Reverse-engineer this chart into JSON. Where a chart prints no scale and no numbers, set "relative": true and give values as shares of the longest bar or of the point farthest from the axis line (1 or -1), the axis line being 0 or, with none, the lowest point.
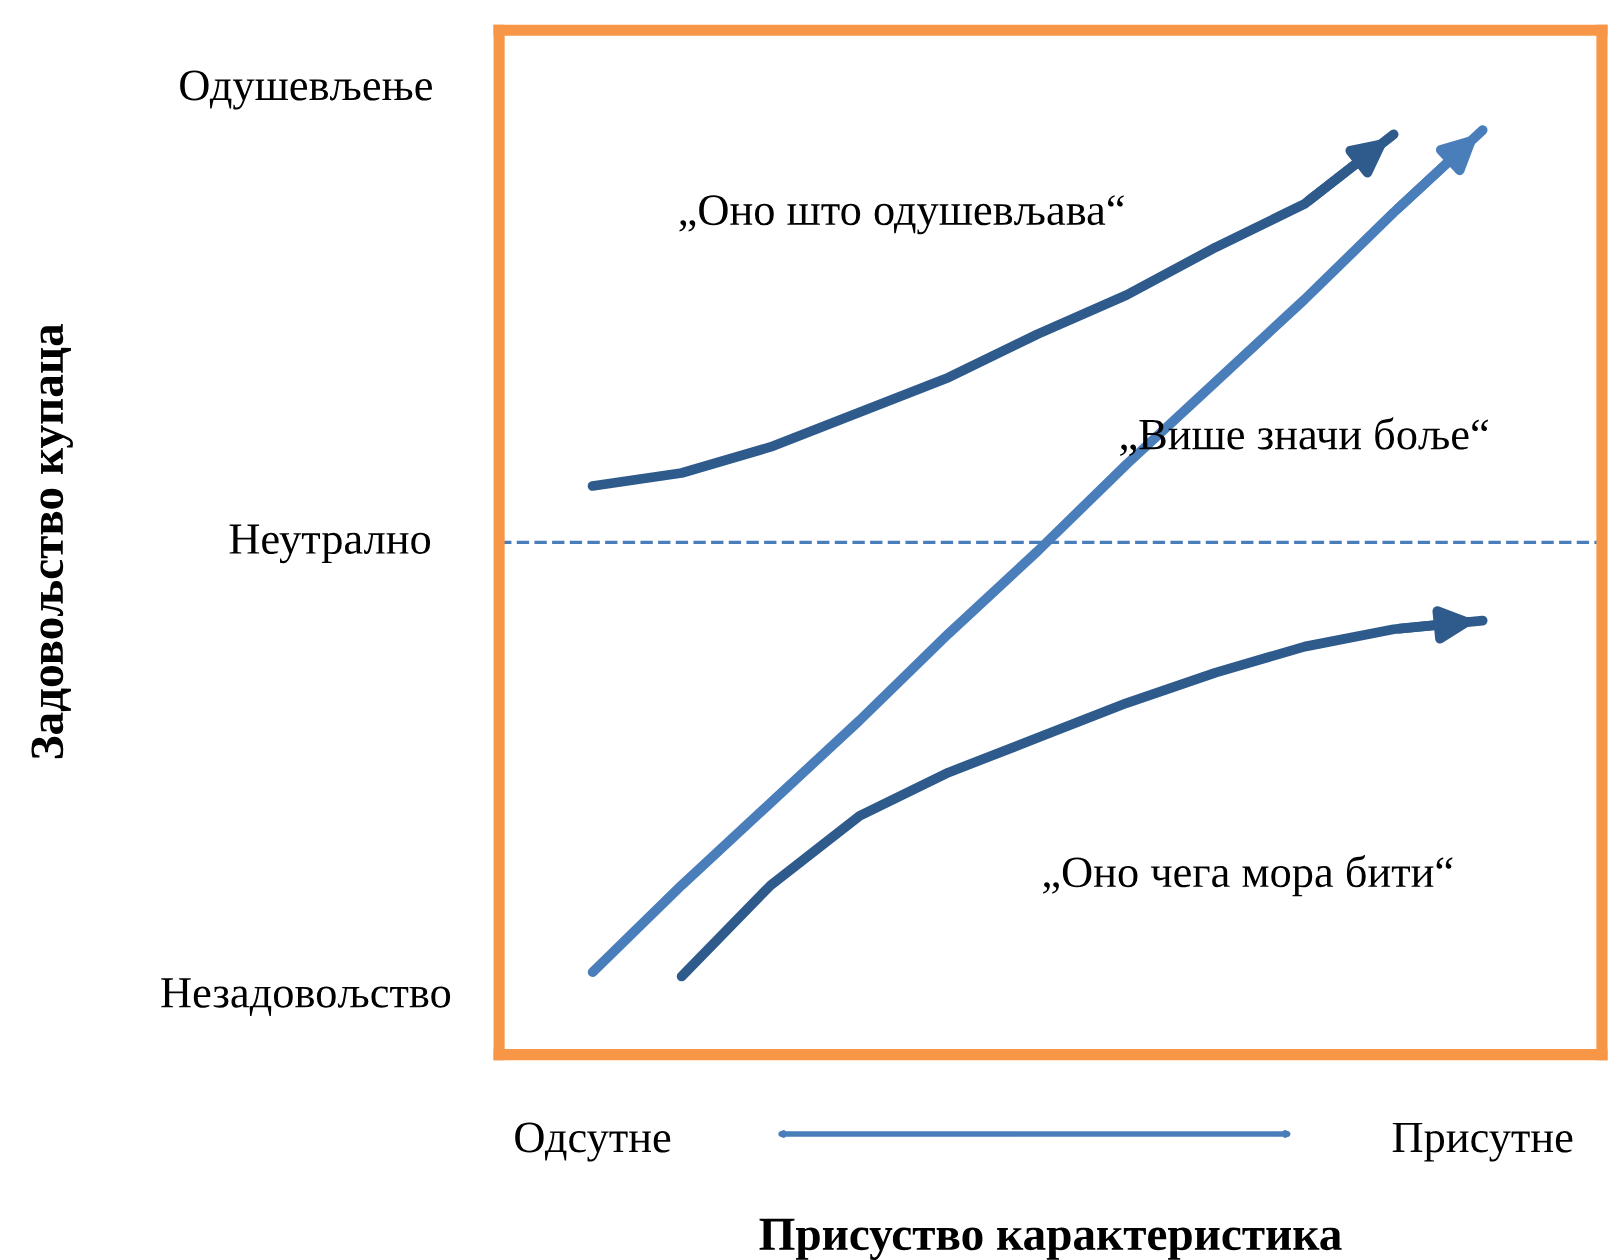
{
  "chart_data": {
    "type": "line",
    "relative": true,
    "xlabel": "Присуство карактеристика",
    "categories": [
      "Одсутне",
      null,
      null,
      null,
      null,
      null,
      null,
      null,
      null,
      null,
      "Присутне"
    ],
    "series": [
      {
        "color": "#2f5b8c",
        "values": [
          0.13,
          0.16,
          0.22,
          0.3,
          0.38,
          0.48,
          0.57,
          0.68,
          0.78,
          0.94,
          null
        ]
      },
      {
        "color": "#4a7ebb",
        "values": [
          -0.99,
          -0.79,
          -0.6,
          -0.41,
          -0.21,
          -0.02,
          0.18,
          0.37,
          0.56,
          0.76,
          0.95
        ]
      },
      {
        "color": "#2f5b8c",
        "values": [
          null,
          -1,
          -0.79,
          -0.63,
          -0.53,
          -0.45,
          -0.37,
          -0.3,
          -0.24,
          -0.2,
          -0.18
        ]
      }
    ],
    "ref_lines": [
      {
        "axis": "y",
        "value": 0,
        "color": "#4a7ebb",
        "line_style": "dashed"
      }
    ],
    "annotations": [
      "„Оно што одушевљава“",
      "„Више значи боље“",
      "„Оно чега мора бити“",
      "Одушевљење",
      "Неутрално",
      "Незадовољство",
      "Задовољство купаца"
    ],
    "line_style": "solid"
  }
}
